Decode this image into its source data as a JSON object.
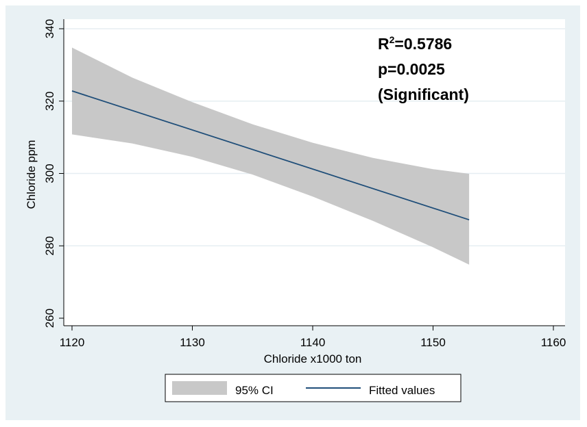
{
  "chart_data": {
    "type": "line",
    "title": "",
    "xlabel": "Chloride x1000 ton",
    "ylabel": "Chloride ppm",
    "xlim": [
      1120,
      1160
    ],
    "ylim": [
      260,
      340
    ],
    "x_ticks": [
      "1120",
      "1130",
      "1140",
      "1150",
      "1160"
    ],
    "y_ticks": [
      "260",
      "280",
      "300",
      "320",
      "340"
    ],
    "grid": true,
    "series": [
      {
        "name": "Fitted values",
        "type": "line",
        "color": "#1f4e79",
        "x": [
          1120,
          1153
        ],
        "y": [
          322.8,
          287.2
        ]
      },
      {
        "name": "95% CI",
        "type": "area",
        "color": "#c8c8c8",
        "x": [
          1120,
          1125,
          1130,
          1135,
          1140,
          1145,
          1150,
          1153
        ],
        "upper": [
          334.8,
          326.5,
          319.7,
          313.6,
          308.5,
          304.3,
          301.2,
          299.9
        ],
        "lower": [
          310.8,
          308.3,
          304.6,
          299.7,
          293.6,
          286.9,
          279.6,
          274.8
        ]
      }
    ],
    "annotations": {
      "r2_prefix": "R",
      "r2_sup": "2",
      "r2_value": "=0.5786",
      "p_value": "p=0.0025",
      "significance": "(Significant)"
    },
    "legend": {
      "position": "bottom",
      "items": [
        "95% CI",
        "Fitted values"
      ]
    },
    "colors": {
      "outer_background": "#e9f1f4",
      "plot_background": "#ffffff",
      "grid": "#e6eef2",
      "ci_fill": "#c8c8c8",
      "line": "#1f4e79"
    }
  }
}
